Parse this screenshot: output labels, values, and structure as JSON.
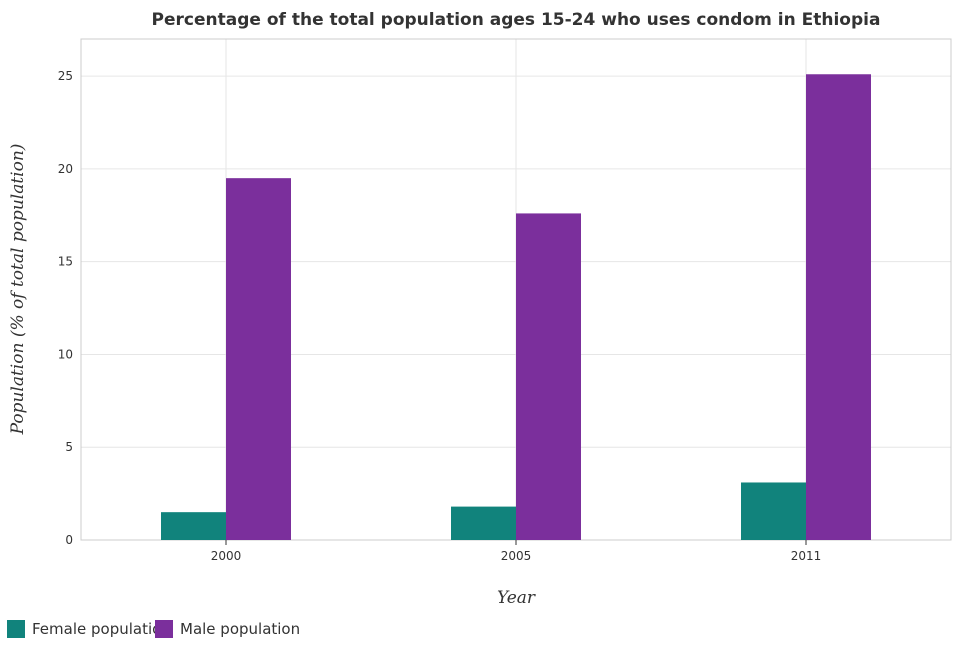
{
  "colors": {
    "female": "#11837c",
    "male": "#7b2f9c"
  },
  "chart_data": {
    "type": "bar",
    "title": "Percentage of the total population ages 15-24 who uses condom in Ethiopia",
    "xlabel": "Year",
    "ylabel": "Population (% of total population)",
    "categories": [
      "2000",
      "2005",
      "2011"
    ],
    "series": [
      {
        "name": "Female population",
        "values": [
          1.5,
          1.8,
          3.1
        ]
      },
      {
        "name": "Male population",
        "values": [
          19.5,
          17.6,
          25.1
        ]
      }
    ],
    "ylim": [
      0,
      27
    ],
    "yticks": [
      "0",
      "5",
      "10",
      "15",
      "20",
      "25"
    ],
    "grid": true,
    "legend_position": "bottom-left"
  }
}
